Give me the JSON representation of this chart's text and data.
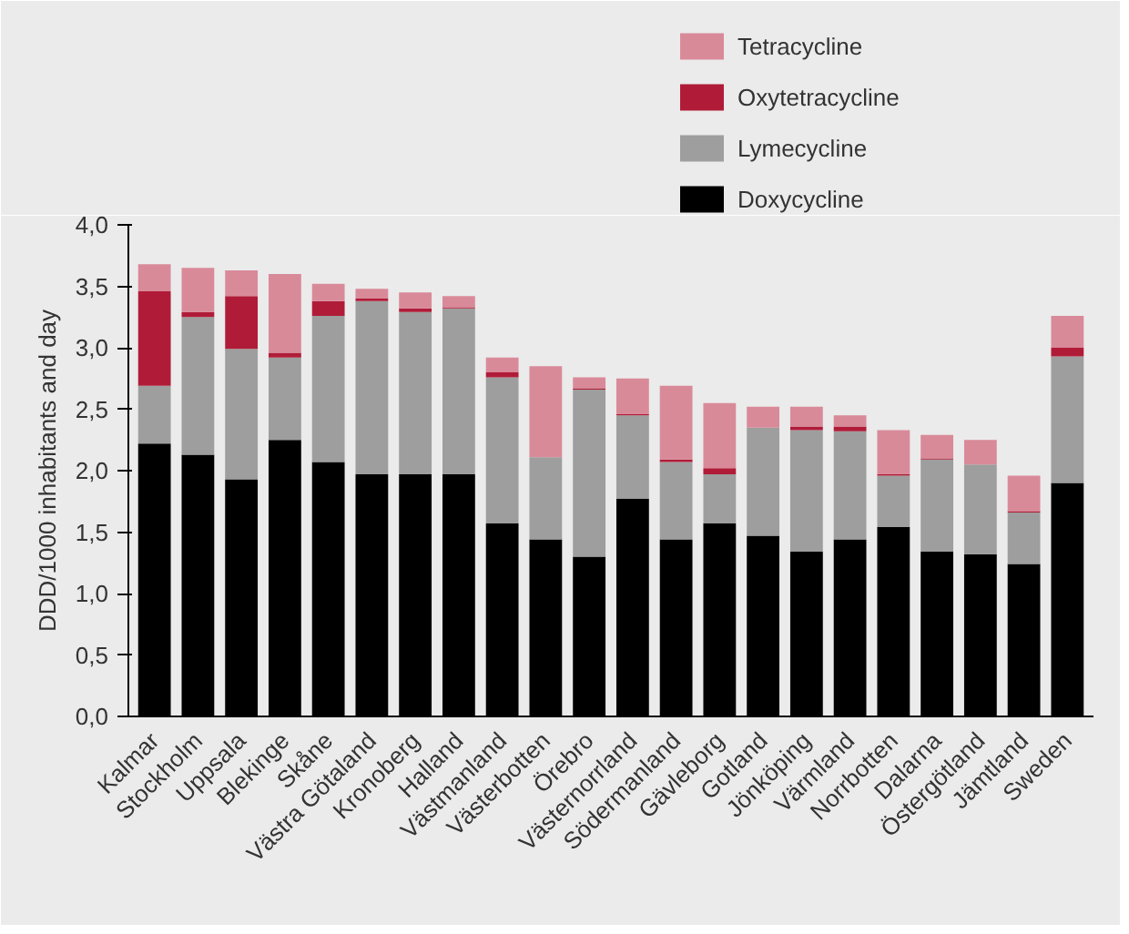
{
  "chart_data": {
    "type": "bar",
    "stacked": true,
    "ylabel": "DDD/1000 inhabitants and day",
    "categories": [
      "Kalmar",
      "Stockholm",
      "Uppsala",
      "Blekinge",
      "Skåne",
      "Västra Götaland",
      "Kronoberg",
      "Halland",
      "Västmanland",
      "Västerbotten",
      "Örebro",
      "Västernorrland",
      "Södermanland",
      "Gävleborg",
      "Gotland",
      "Jönköping",
      "Värmland",
      "Norrbotten",
      "Dalarna",
      "Östergötland",
      "Jämtland",
      "Sweden"
    ],
    "series": [
      {
        "name": "Doxycycline",
        "color": "#000000",
        "values": [
          2.22,
          2.13,
          1.93,
          2.25,
          2.07,
          1.97,
          1.97,
          1.97,
          1.57,
          1.44,
          1.3,
          1.77,
          1.44,
          1.57,
          1.47,
          1.34,
          1.44,
          1.54,
          1.34,
          1.32,
          1.24,
          1.9
        ]
      },
      {
        "name": "Lymecycline",
        "color": "#9d9e9d",
        "values": [
          0.47,
          1.12,
          1.06,
          0.67,
          1.19,
          1.41,
          1.32,
          1.35,
          1.19,
          0.67,
          1.36,
          0.68,
          0.63,
          0.4,
          0.88,
          0.99,
          0.88,
          0.42,
          0.75,
          0.73,
          0.42,
          1.03
        ]
      },
      {
        "name": "Oxytetracycline",
        "color": "#b01c38",
        "values": [
          0.77,
          0.04,
          0.43,
          0.04,
          0.12,
          0.02,
          0.03,
          0.01,
          0.04,
          0,
          0.01,
          0.01,
          0.02,
          0.05,
          0,
          0.03,
          0.04,
          0.01,
          0.01,
          0,
          0.01,
          0.07
        ]
      },
      {
        "name": "Tetracycline",
        "color": "#d98a99",
        "values": [
          0.22,
          0.36,
          0.21,
          0.64,
          0.14,
          0.08,
          0.13,
          0.09,
          0.12,
          0.74,
          0.09,
          0.29,
          0.6,
          0.53,
          0.17,
          0.16,
          0.09,
          0.36,
          0.19,
          0.2,
          0.29,
          0.26
        ]
      }
    ],
    "ylim": [
      0,
      4.0
    ],
    "yticks": [
      {
        "value": 0,
        "label": "0,0"
      },
      {
        "value": 0.5,
        "label": "0,5"
      },
      {
        "value": 1.0,
        "label": "1,0"
      },
      {
        "value": 1.5,
        "label": "1,5"
      },
      {
        "value": 2.0,
        "label": "2,0"
      },
      {
        "value": 2.5,
        "label": "2,5"
      },
      {
        "value": 3.0,
        "label": "3,0"
      },
      {
        "value": 3.5,
        "label": "3,5"
      },
      {
        "value": 4.0,
        "label": "4,0"
      }
    ],
    "grid": false,
    "legend": "top right"
  }
}
